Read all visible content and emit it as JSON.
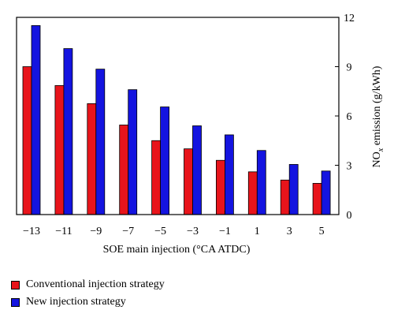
{
  "chart_data": {
    "type": "bar",
    "title": "",
    "xlabel": "SOE main injection (°CA ATDC)",
    "ylabel_main": "NO",
    "ylabel_sub": "x",
    "ylabel_tail": " emission (g/kWh)",
    "categories": [
      "−13",
      "−11",
      "−9",
      "−7",
      "−5",
      "−3",
      "−1",
      "1",
      "3",
      "5"
    ],
    "series": [
      {
        "name": "Conventional injection strategy",
        "color": "#e8141b",
        "values": [
          9.0,
          7.85,
          6.75,
          5.45,
          4.5,
          4.0,
          3.3,
          2.6,
          2.1,
          1.9
        ]
      },
      {
        "name": "New injection strategy",
        "color": "#1414e0",
        "values": [
          11.5,
          10.1,
          8.85,
          7.6,
          6.55,
          5.4,
          4.85,
          3.9,
          3.05,
          2.65
        ]
      }
    ],
    "ylim": [
      0,
      12
    ],
    "yticks": [
      "0",
      "3",
      "6",
      "9",
      "12"
    ],
    "grid": false,
    "legend_position": "bottom-left",
    "y_axis_side": "right"
  }
}
